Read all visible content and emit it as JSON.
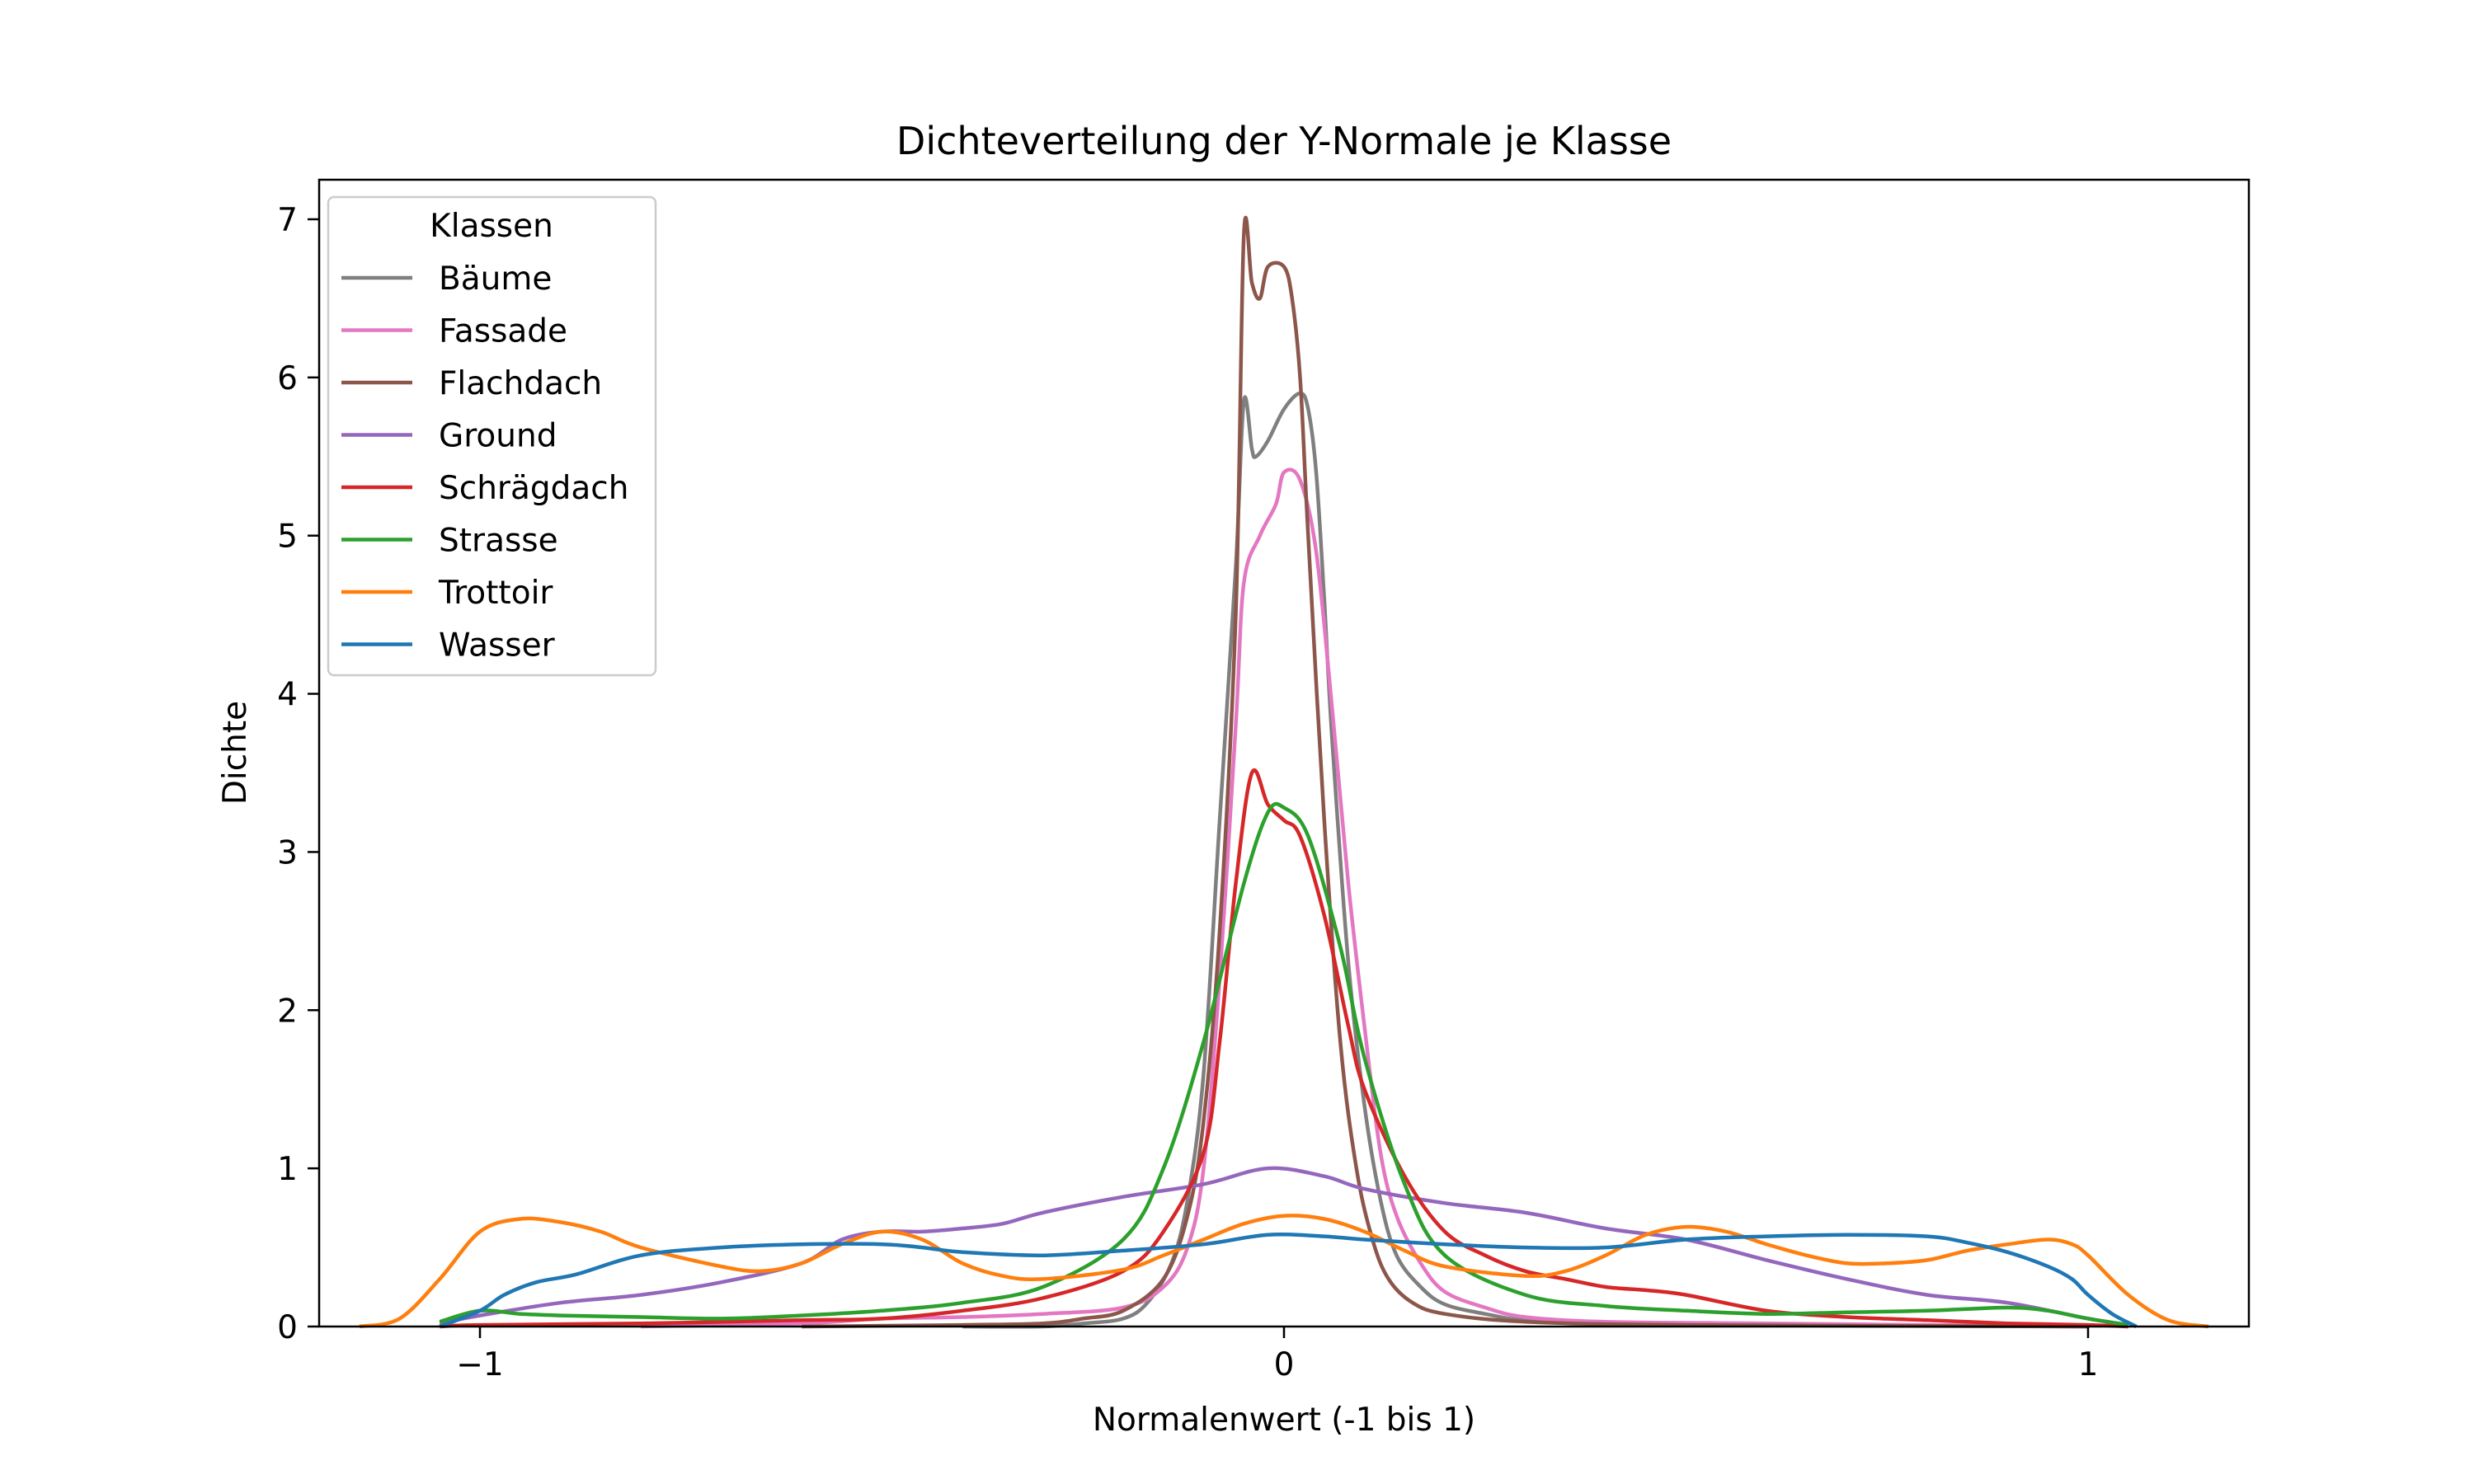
{
  "chart_data": {
    "type": "line",
    "title": "Dichteverteilung der Y-Normale je Klasse",
    "xlabel": "Normalenwert (-1 bis 1)",
    "ylabel": "Dichte",
    "xlim": [
      -1.2,
      1.2
    ],
    "ylim": [
      0,
      7.25
    ],
    "xticks": [
      -1,
      0,
      1
    ],
    "xtick_labels": [
      "−1",
      "0",
      "1"
    ],
    "yticks": [
      0,
      1,
      2,
      3,
      4,
      5,
      6,
      7
    ],
    "ytick_labels": [
      "0",
      "1",
      "2",
      "3",
      "4",
      "5",
      "6",
      "7"
    ],
    "grid": false,
    "legend": {
      "title": "Klassen",
      "placement": "top-left"
    },
    "series": [
      {
        "name": "Bäume",
        "color": "#7f7f7f",
        "points": [
          [
            -0.4,
            0
          ],
          [
            -0.3,
            0
          ],
          [
            -0.25,
            0.02
          ],
          [
            -0.2,
            0.05
          ],
          [
            -0.17,
            0.15
          ],
          [
            -0.14,
            0.4
          ],
          [
            -0.12,
            0.8
          ],
          [
            -0.1,
            1.6
          ],
          [
            -0.08,
            3.2
          ],
          [
            -0.06,
            4.8
          ],
          [
            -0.05,
            5.85
          ],
          [
            -0.04,
            5.55
          ],
          [
            -0.035,
            5.5
          ],
          [
            -0.02,
            5.6
          ],
          [
            0,
            5.8
          ],
          [
            0.02,
            5.9
          ],
          [
            0.03,
            5.8
          ],
          [
            0.04,
            5.4
          ],
          [
            0.05,
            4.6
          ],
          [
            0.06,
            3.7
          ],
          [
            0.08,
            2.3
          ],
          [
            0.1,
            1.4
          ],
          [
            0.12,
            0.8
          ],
          [
            0.14,
            0.45
          ],
          [
            0.17,
            0.25
          ],
          [
            0.2,
            0.14
          ],
          [
            0.25,
            0.08
          ],
          [
            0.3,
            0.04
          ],
          [
            0.4,
            0.02
          ],
          [
            0.6,
            0.01
          ],
          [
            1.0,
            0
          ]
        ]
      },
      {
        "name": "Fassade",
        "color": "#e377c2",
        "points": [
          [
            -0.8,
            0
          ],
          [
            -0.6,
            0.02
          ],
          [
            -0.5,
            0.05
          ],
          [
            -0.4,
            0.06
          ],
          [
            -0.3,
            0.08
          ],
          [
            -0.2,
            0.12
          ],
          [
            -0.15,
            0.25
          ],
          [
            -0.12,
            0.5
          ],
          [
            -0.1,
            1.0
          ],
          [
            -0.08,
            2.2
          ],
          [
            -0.06,
            3.8
          ],
          [
            -0.05,
            4.7
          ],
          [
            -0.03,
            5.0
          ],
          [
            -0.01,
            5.2
          ],
          [
            0,
            5.4
          ],
          [
            0.02,
            5.35
          ],
          [
            0.04,
            4.9
          ],
          [
            0.06,
            3.9
          ],
          [
            0.08,
            2.8
          ],
          [
            0.1,
            1.9
          ],
          [
            0.12,
            1.1
          ],
          [
            0.14,
            0.7
          ],
          [
            0.17,
            0.4
          ],
          [
            0.2,
            0.22
          ],
          [
            0.25,
            0.12
          ],
          [
            0.3,
            0.06
          ],
          [
            0.4,
            0.03
          ],
          [
            0.6,
            0.02
          ],
          [
            0.8,
            0.01
          ],
          [
            1.0,
            0
          ]
        ]
      },
      {
        "name": "Flachdach",
        "color": "#8c564b",
        "points": [
          [
            -0.6,
            0
          ],
          [
            -0.4,
            0.01
          ],
          [
            -0.3,
            0.02
          ],
          [
            -0.25,
            0.05
          ],
          [
            -0.2,
            0.1
          ],
          [
            -0.15,
            0.3
          ],
          [
            -0.12,
            0.7
          ],
          [
            -0.1,
            1.3
          ],
          [
            -0.08,
            2.5
          ],
          [
            -0.06,
            4.5
          ],
          [
            -0.05,
            6.9
          ],
          [
            -0.04,
            6.6
          ],
          [
            -0.03,
            6.5
          ],
          [
            -0.02,
            6.7
          ],
          [
            0,
            6.7
          ],
          [
            0.01,
            6.5
          ],
          [
            0.02,
            6.0
          ],
          [
            0.03,
            5.0
          ],
          [
            0.05,
            3.2
          ],
          [
            0.07,
            1.8
          ],
          [
            0.09,
            1.0
          ],
          [
            0.11,
            0.55
          ],
          [
            0.13,
            0.3
          ],
          [
            0.16,
            0.15
          ],
          [
            0.2,
            0.08
          ],
          [
            0.3,
            0.03
          ],
          [
            0.5,
            0.01
          ],
          [
            1.0,
            0
          ]
        ]
      },
      {
        "name": "Ground",
        "color": "#9467bd",
        "points": [
          [
            -1.05,
            0.02
          ],
          [
            -1.0,
            0.07
          ],
          [
            -0.9,
            0.15
          ],
          [
            -0.8,
            0.2
          ],
          [
            -0.7,
            0.28
          ],
          [
            -0.6,
            0.4
          ],
          [
            -0.55,
            0.55
          ],
          [
            -0.5,
            0.6
          ],
          [
            -0.45,
            0.6
          ],
          [
            -0.4,
            0.62
          ],
          [
            -0.35,
            0.65
          ],
          [
            -0.3,
            0.72
          ],
          [
            -0.2,
            0.82
          ],
          [
            -0.1,
            0.9
          ],
          [
            -0.02,
            1.0
          ],
          [
            0.05,
            0.95
          ],
          [
            0.1,
            0.87
          ],
          [
            0.2,
            0.78
          ],
          [
            0.3,
            0.72
          ],
          [
            0.4,
            0.62
          ],
          [
            0.5,
            0.55
          ],
          [
            0.6,
            0.42
          ],
          [
            0.7,
            0.3
          ],
          [
            0.8,
            0.2
          ],
          [
            0.9,
            0.15
          ],
          [
            1.0,
            0.05
          ],
          [
            1.05,
            0.01
          ]
        ]
      },
      {
        "name": "Schrägdach",
        "color": "#d62728",
        "points": [
          [
            -1.05,
            0
          ],
          [
            -1.0,
            0.01
          ],
          [
            -0.8,
            0.02
          ],
          [
            -0.6,
            0.04
          ],
          [
            -0.5,
            0.05
          ],
          [
            -0.4,
            0.1
          ],
          [
            -0.3,
            0.18
          ],
          [
            -0.2,
            0.35
          ],
          [
            -0.15,
            0.6
          ],
          [
            -0.1,
            1.1
          ],
          [
            -0.08,
            1.8
          ],
          [
            -0.06,
            2.8
          ],
          [
            -0.04,
            3.5
          ],
          [
            -0.02,
            3.3
          ],
          [
            0,
            3.2
          ],
          [
            0.02,
            3.1
          ],
          [
            0.05,
            2.6
          ],
          [
            0.08,
            1.9
          ],
          [
            0.1,
            1.5
          ],
          [
            0.15,
            0.95
          ],
          [
            0.2,
            0.6
          ],
          [
            0.25,
            0.45
          ],
          [
            0.3,
            0.35
          ],
          [
            0.35,
            0.3
          ],
          [
            0.4,
            0.25
          ],
          [
            0.45,
            0.23
          ],
          [
            0.5,
            0.2
          ],
          [
            0.6,
            0.1
          ],
          [
            0.7,
            0.06
          ],
          [
            0.8,
            0.04
          ],
          [
            0.9,
            0.02
          ],
          [
            1.0,
            0.01
          ],
          [
            1.05,
            0
          ]
        ]
      },
      {
        "name": "Strasse",
        "color": "#2ca02c",
        "points": [
          [
            -1.05,
            0.03
          ],
          [
            -1.0,
            0.1
          ],
          [
            -0.95,
            0.08
          ],
          [
            -0.9,
            0.07
          ],
          [
            -0.8,
            0.06
          ],
          [
            -0.7,
            0.05
          ],
          [
            -0.6,
            0.07
          ],
          [
            -0.5,
            0.1
          ],
          [
            -0.4,
            0.15
          ],
          [
            -0.3,
            0.25
          ],
          [
            -0.2,
            0.55
          ],
          [
            -0.15,
            1.0
          ],
          [
            -0.1,
            1.8
          ],
          [
            -0.05,
            2.8
          ],
          [
            -0.02,
            3.25
          ],
          [
            0,
            3.28
          ],
          [
            0.03,
            3.1
          ],
          [
            0.07,
            2.4
          ],
          [
            0.1,
            1.7
          ],
          [
            0.15,
            0.9
          ],
          [
            0.2,
            0.45
          ],
          [
            0.3,
            0.2
          ],
          [
            0.4,
            0.13
          ],
          [
            0.5,
            0.1
          ],
          [
            0.6,
            0.08
          ],
          [
            0.7,
            0.09
          ],
          [
            0.8,
            0.1
          ],
          [
            0.9,
            0.12
          ],
          [
            0.95,
            0.1
          ],
          [
            1.0,
            0.05
          ],
          [
            1.05,
            0.01
          ]
        ]
      },
      {
        "name": "Trottoir",
        "color": "#ff7f0e",
        "points": [
          [
            -1.15,
            0
          ],
          [
            -1.1,
            0.05
          ],
          [
            -1.05,
            0.3
          ],
          [
            -1.0,
            0.6
          ],
          [
            -0.95,
            0.68
          ],
          [
            -0.9,
            0.66
          ],
          [
            -0.85,
            0.6
          ],
          [
            -0.8,
            0.5
          ],
          [
            -0.7,
            0.38
          ],
          [
            -0.65,
            0.35
          ],
          [
            -0.6,
            0.4
          ],
          [
            -0.55,
            0.52
          ],
          [
            -0.5,
            0.6
          ],
          [
            -0.45,
            0.55
          ],
          [
            -0.4,
            0.4
          ],
          [
            -0.35,
            0.32
          ],
          [
            -0.3,
            0.3
          ],
          [
            -0.2,
            0.36
          ],
          [
            -0.15,
            0.45
          ],
          [
            -0.1,
            0.55
          ],
          [
            -0.05,
            0.65
          ],
          [
            0,
            0.7
          ],
          [
            0.05,
            0.68
          ],
          [
            0.1,
            0.6
          ],
          [
            0.15,
            0.48
          ],
          [
            0.2,
            0.38
          ],
          [
            0.3,
            0.32
          ],
          [
            0.35,
            0.35
          ],
          [
            0.4,
            0.45
          ],
          [
            0.45,
            0.58
          ],
          [
            0.5,
            0.63
          ],
          [
            0.55,
            0.6
          ],
          [
            0.6,
            0.52
          ],
          [
            0.65,
            0.45
          ],
          [
            0.7,
            0.4
          ],
          [
            0.75,
            0.4
          ],
          [
            0.8,
            0.42
          ],
          [
            0.85,
            0.48
          ],
          [
            0.9,
            0.52
          ],
          [
            0.95,
            0.55
          ],
          [
            0.98,
            0.52
          ],
          [
            1.0,
            0.45
          ],
          [
            1.05,
            0.2
          ],
          [
            1.1,
            0.04
          ],
          [
            1.15,
            0
          ]
        ]
      },
      {
        "name": "Wasser",
        "color": "#1f77b4",
        "points": [
          [
            -1.05,
            0
          ],
          [
            -1.0,
            0.1
          ],
          [
            -0.97,
            0.2
          ],
          [
            -0.93,
            0.28
          ],
          [
            -0.88,
            0.33
          ],
          [
            -0.8,
            0.45
          ],
          [
            -0.7,
            0.5
          ],
          [
            -0.6,
            0.52
          ],
          [
            -0.5,
            0.52
          ],
          [
            -0.45,
            0.5
          ],
          [
            -0.4,
            0.47
          ],
          [
            -0.3,
            0.45
          ],
          [
            -0.2,
            0.48
          ],
          [
            -0.1,
            0.52
          ],
          [
            -0.02,
            0.58
          ],
          [
            0.05,
            0.57
          ],
          [
            0.1,
            0.55
          ],
          [
            0.2,
            0.52
          ],
          [
            0.3,
            0.5
          ],
          [
            0.4,
            0.5
          ],
          [
            0.5,
            0.55
          ],
          [
            0.6,
            0.57
          ],
          [
            0.7,
            0.58
          ],
          [
            0.8,
            0.57
          ],
          [
            0.85,
            0.53
          ],
          [
            0.9,
            0.47
          ],
          [
            0.95,
            0.38
          ],
          [
            0.98,
            0.3
          ],
          [
            1.0,
            0.2
          ],
          [
            1.03,
            0.08
          ],
          [
            1.06,
            0
          ]
        ]
      }
    ]
  }
}
